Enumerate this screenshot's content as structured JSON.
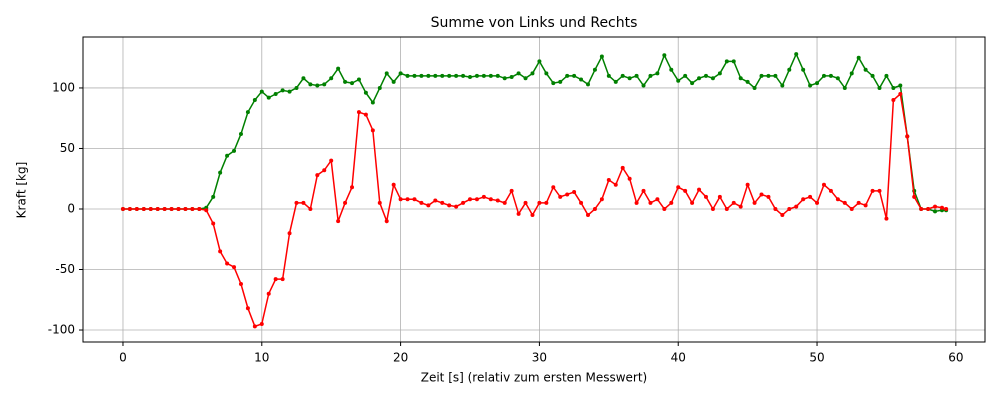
{
  "chart_data": {
    "type": "line",
    "title": "Summe von Links und Rechts",
    "xlabel": "Zeit [s] (relativ zum ersten Messwert)",
    "ylabel": "Kraft [kg]",
    "x": [
      0,
      0.5,
      1,
      1.5,
      2,
      2.5,
      3,
      3.5,
      4,
      4.5,
      5,
      5.5,
      6,
      6.5,
      7,
      7.5,
      8,
      8.5,
      9,
      9.5,
      10,
      10.5,
      11,
      11.5,
      12,
      12.5,
      13,
      13.5,
      14,
      14.5,
      15,
      15.5,
      16,
      16.5,
      17,
      17.5,
      18,
      18.5,
      19,
      19.5,
      20,
      20.5,
      21,
      21.5,
      22,
      22.5,
      23,
      23.5,
      24,
      24.5,
      25,
      25.5,
      26,
      26.5,
      27,
      27.5,
      28,
      28.5,
      29,
      29.5,
      30,
      30.5,
      31,
      31.5,
      32,
      32.5,
      33,
      33.5,
      34,
      34.5,
      35,
      35.5,
      36,
      36.5,
      37,
      37.5,
      38,
      38.5,
      39,
      39.5,
      40,
      40.5,
      41,
      41.5,
      42,
      42.5,
      43,
      43.5,
      44,
      44.5,
      45,
      45.5,
      46,
      46.5,
      47,
      47.5,
      48,
      48.5,
      49,
      49.5,
      50,
      50.5,
      51,
      51.5,
      52,
      52.5,
      53,
      53.5,
      54,
      54.5,
      55,
      55.5,
      56,
      56.5,
      57,
      57.5,
      58,
      58.5,
      59,
      59.3
    ],
    "series": [
      {
        "color": "green",
        "values": [
          0,
          0,
          0,
          0,
          0,
          0,
          0,
          0,
          0,
          0,
          0,
          0,
          1,
          10,
          30,
          44,
          48,
          62,
          80,
          90,
          97,
          92,
          95,
          98,
          97,
          100,
          108,
          103,
          102,
          103,
          108,
          116,
          105,
          104,
          107,
          96,
          88,
          100,
          112,
          105,
          112,
          110,
          110,
          110,
          110,
          110,
          110,
          110,
          110,
          110,
          109,
          110,
          110,
          110,
          110,
          108,
          109,
          112,
          108,
          112,
          122,
          112,
          104,
          105,
          110,
          110,
          107,
          103,
          115,
          126,
          110,
          105,
          110,
          108,
          110,
          102,
          110,
          112,
          127,
          115,
          106,
          110,
          104,
          108,
          110,
          108,
          112,
          122,
          122,
          108,
          105,
          100,
          110,
          110,
          110,
          102,
          115,
          128,
          115,
          102,
          104,
          110,
          110,
          108,
          100,
          112,
          125,
          115,
          110,
          100,
          110,
          100,
          102,
          60,
          15,
          0,
          0,
          -2,
          -1,
          -1
        ]
      },
      {
        "color": "red",
        "values": [
          0,
          0,
          0,
          0,
          0,
          0,
          0,
          0,
          0,
          0,
          0,
          0,
          -1,
          -12,
          -35,
          -45,
          -48,
          -62,
          -82,
          -97,
          -95,
          -70,
          -58,
          -58,
          -20,
          5,
          5,
          0,
          28,
          32,
          40,
          -10,
          5,
          18,
          80,
          78,
          65,
          5,
          -10,
          20,
          8,
          8,
          8,
          5,
          3,
          7,
          5,
          3,
          2,
          5,
          8,
          8,
          10,
          8,
          7,
          5,
          15,
          -4,
          5,
          -5,
          5,
          5,
          18,
          10,
          12,
          14,
          5,
          -5,
          0,
          8,
          24,
          20,
          34,
          25,
          5,
          15,
          5,
          8,
          0,
          5,
          18,
          15,
          5,
          16,
          10,
          0,
          10,
          0,
          5,
          2,
          20,
          5,
          12,
          10,
          0,
          -5,
          0,
          2,
          8,
          10,
          5,
          20,
          15,
          8,
          5,
          0,
          5,
          3,
          15,
          15,
          -8,
          90,
          95,
          60,
          10,
          0,
          0,
          2,
          1,
          0
        ]
      }
    ],
    "xlim": [
      -2.88,
      62.1
    ],
    "xticks": [
      0,
      10,
      20,
      30,
      40,
      50,
      60
    ],
    "ylim": [
      -109.9,
      142.1
    ],
    "yticks": [
      -100,
      -50,
      0,
      50,
      100
    ],
    "grid": true
  }
}
